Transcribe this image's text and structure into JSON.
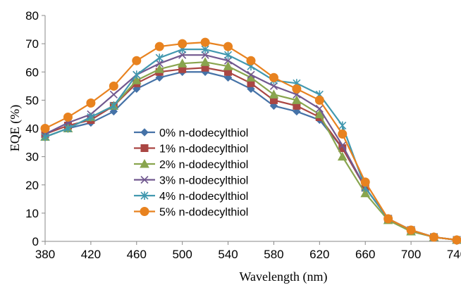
{
  "chart_data": {
    "type": "line",
    "title": "",
    "xlabel": "Wavelength (nm)",
    "ylabel": "EQE (%)",
    "xlim": [
      380,
      740
    ],
    "ylim": [
      0,
      80
    ],
    "x_ticks": [
      380,
      420,
      460,
      500,
      540,
      580,
      620,
      660,
      700,
      740
    ],
    "x_tick_labels": [
      "380",
      "420",
      "460",
      "500",
      "540",
      "580",
      "620",
      "660",
      "700",
      "740"
    ],
    "y_ticks": [
      0,
      10,
      20,
      30,
      40,
      50,
      60,
      70,
      80
    ],
    "y_tick_labels": [
      "0",
      "10",
      "20",
      "30",
      "40",
      "50",
      "60",
      "70",
      "80"
    ],
    "grid": false,
    "legend_position": "inside-left",
    "x": [
      380,
      400,
      420,
      440,
      460,
      480,
      500,
      520,
      540,
      560,
      580,
      600,
      620,
      640,
      660,
      680,
      700,
      720,
      740
    ],
    "series": [
      {
        "name": "0% n-dodecylthiol",
        "color": "#4572a7",
        "marker": "diamond",
        "values": [
          37,
          40,
          42,
          46,
          54,
          58,
          60,
          60,
          58,
          54,
          48,
          46,
          43,
          33,
          19,
          8,
          4,
          1.5,
          0.5
        ]
      },
      {
        "name": "1% n-dodecylthiol",
        "color": "#aa4643",
        "marker": "square",
        "values": [
          38,
          41,
          43,
          48,
          56,
          60,
          61,
          61.5,
          60,
          56,
          50,
          48,
          44,
          33,
          19,
          8,
          4,
          1.5,
          0.5
        ]
      },
      {
        "name": "2% n-dodecylthiol",
        "color": "#89a54e",
        "marker": "triangle",
        "values": [
          37,
          40,
          44,
          48,
          57,
          61,
          63,
          63.5,
          62,
          58,
          52,
          50,
          45,
          30,
          17,
          7.5,
          3.5,
          1.5,
          0.5
        ]
      },
      {
        "name": "3% n-dodecylthiol",
        "color": "#71588f",
        "marker": "x",
        "values": [
          38,
          42,
          45,
          52,
          59,
          63,
          66,
          66,
          64,
          59,
          55,
          52,
          47,
          34,
          19,
          8,
          4,
          1.5,
          0.5
        ]
      },
      {
        "name": "4% n-dodecylthiol",
        "color": "#4198af",
        "marker": "star",
        "values": [
          37,
          40,
          44,
          48,
          59,
          65,
          68,
          68,
          66,
          62,
          57,
          56,
          52,
          41,
          19,
          8,
          4,
          1.5,
          0.5
        ]
      },
      {
        "name": "5% n-dodecylthiol",
        "color": "#e8821f",
        "marker": "circle",
        "values": [
          40,
          44,
          49,
          55,
          64,
          69,
          70,
          70.5,
          69,
          64,
          58,
          54,
          50,
          38,
          21,
          8,
          4,
          1.5,
          0.5
        ]
      }
    ]
  }
}
